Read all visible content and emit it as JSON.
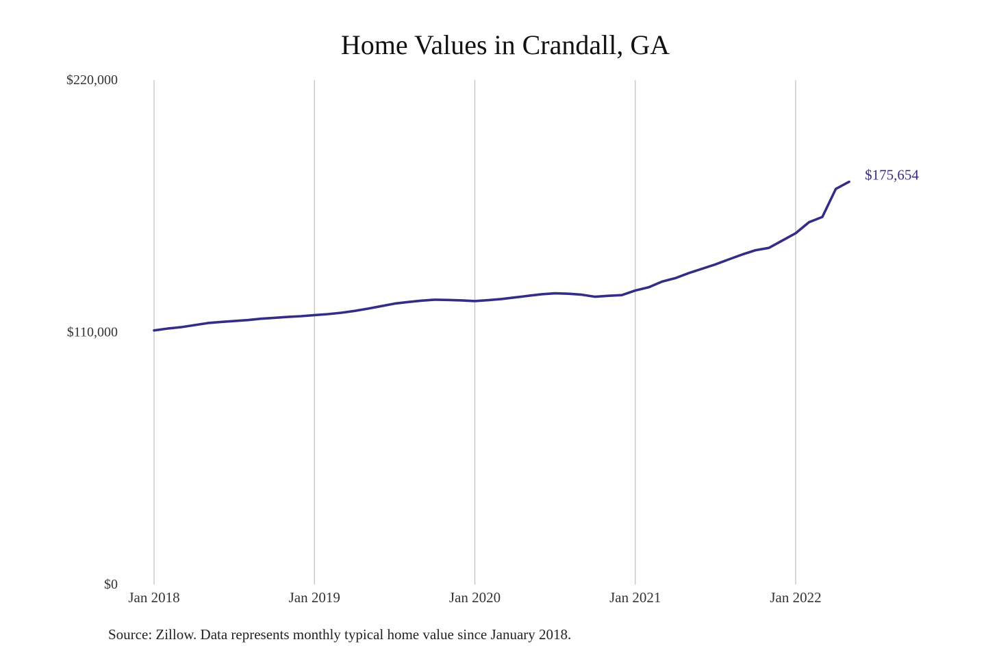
{
  "chart_data": {
    "type": "line",
    "title": "Home Values in Crandall, GA",
    "xlabel": "",
    "ylabel": "",
    "ylim": [
      0,
      220000
    ],
    "yticks": [
      {
        "value": 0,
        "label": "$0"
      },
      {
        "value": 110000,
        "label": "$110,000"
      },
      {
        "value": 220000,
        "label": "$220,000"
      }
    ],
    "xticks": [
      {
        "date": "2018-01",
        "label": "Jan 2018"
      },
      {
        "date": "2019-01",
        "label": "Jan 2019"
      },
      {
        "date": "2020-01",
        "label": "Jan 2020"
      },
      {
        "date": "2021-01",
        "label": "Jan 2021"
      },
      {
        "date": "2022-01",
        "label": "Jan 2022"
      }
    ],
    "grid": "vertical",
    "series": [
      {
        "color": "#342d86",
        "end_label": "$175,654",
        "x": [
          "2018-01",
          "2018-02",
          "2018-03",
          "2018-04",
          "2018-05",
          "2018-06",
          "2018-07",
          "2018-08",
          "2018-09",
          "2018-10",
          "2018-11",
          "2018-12",
          "2019-01",
          "2019-02",
          "2019-03",
          "2019-04",
          "2019-05",
          "2019-06",
          "2019-07",
          "2019-08",
          "2019-09",
          "2019-10",
          "2019-11",
          "2019-12",
          "2020-01",
          "2020-02",
          "2020-03",
          "2020-04",
          "2020-05",
          "2020-06",
          "2020-07",
          "2020-08",
          "2020-09",
          "2020-10",
          "2020-11",
          "2020-12",
          "2021-01",
          "2021-02",
          "2021-03",
          "2021-04",
          "2021-05",
          "2021-06",
          "2021-07",
          "2021-08",
          "2021-09",
          "2021-10",
          "2021-11",
          "2021-12",
          "2022-01",
          "2022-02",
          "2022-03",
          "2022-04",
          "2022-05"
        ],
        "values": [
          110800,
          111600,
          112200,
          113100,
          114000,
          114500,
          114900,
          115300,
          115900,
          116300,
          116700,
          117000,
          117500,
          117900,
          118500,
          119300,
          120300,
          121400,
          122500,
          123200,
          123800,
          124200,
          124100,
          123900,
          123600,
          124000,
          124500,
          125200,
          125900,
          126600,
          127000,
          126800,
          126400,
          125500,
          125900,
          126200,
          128200,
          129600,
          132100,
          133600,
          135800,
          137700,
          139600,
          141800,
          143900,
          145800,
          146800,
          150000,
          153200,
          158000,
          160300,
          172500,
          175654
        ]
      }
    ]
  },
  "source_note": "Source: Zillow. Data represents monthly typical home value since January 2018."
}
